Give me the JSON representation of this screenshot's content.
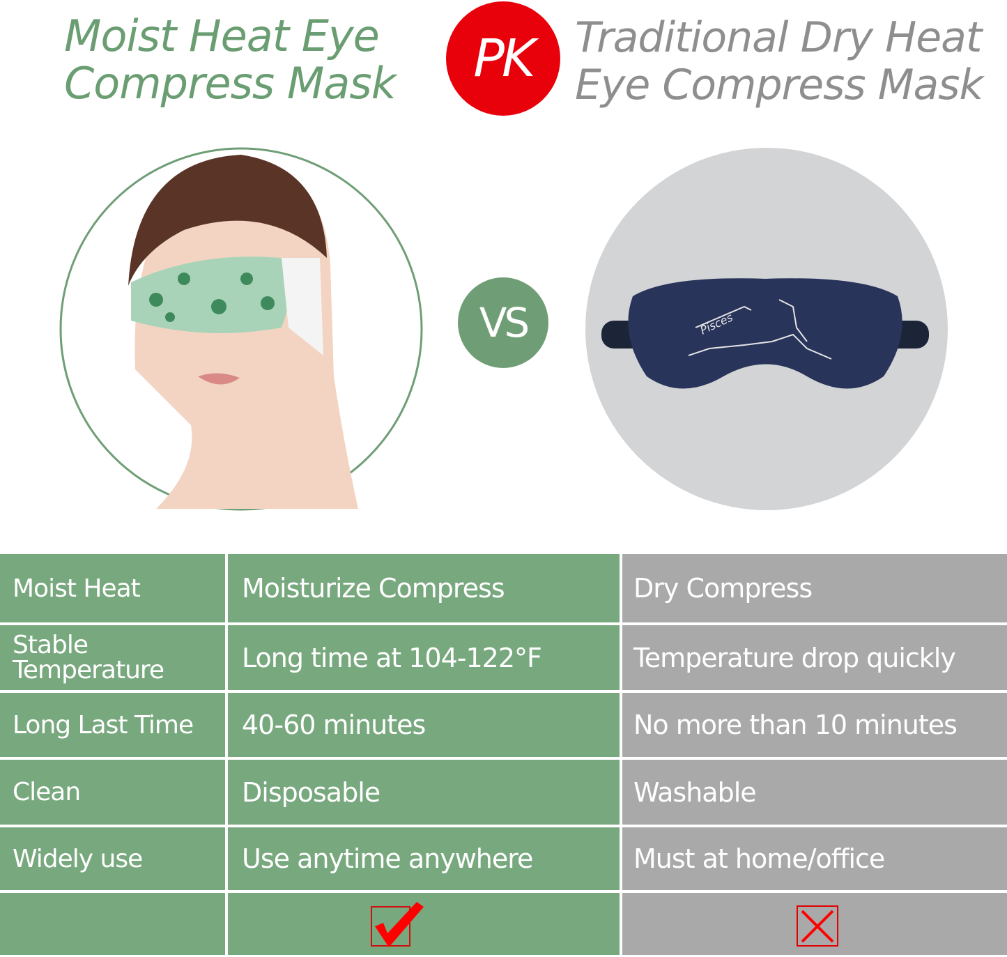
{
  "header": {
    "left_title_line1": "Moist Heat Eye",
    "left_title_line2": "Compress Mask",
    "pk_badge": "PK",
    "right_title_line1": "Traditional Dry Heat",
    "right_title_line2": "Eye Compress Mask"
  },
  "vs_badge": "VS",
  "images": {
    "left": "woman-wearing-leaf-print-eye-mask",
    "right": "navy-silk-sleep-mask-pisces-embroidery",
    "right_embroidery_text": "Pisces"
  },
  "colors": {
    "green": "#78a87e",
    "gray": "#a9a9a9",
    "title_green": "#6a9e72",
    "title_gray": "#8e8e8e",
    "red": "#e8000b"
  },
  "table": {
    "rows": [
      {
        "feature": "Moist Heat",
        "moist": "Moisturize Compress",
        "dry": "Dry Compress"
      },
      {
        "feature": "Stable Temperature",
        "moist": "Long time at 104-122°F",
        "dry": "Temperature drop quickly"
      },
      {
        "feature": "Long Last Time",
        "moist": "40-60 minutes",
        "dry": "No more than 10 minutes"
      },
      {
        "feature": "Clean",
        "moist": "Disposable",
        "dry": "Washable"
      },
      {
        "feature": "Widely use",
        "moist": "Use anytime anywhere",
        "dry": "Must at home/office"
      }
    ],
    "verdict": {
      "moist": "check-icon",
      "dry": "cross-icon"
    }
  }
}
